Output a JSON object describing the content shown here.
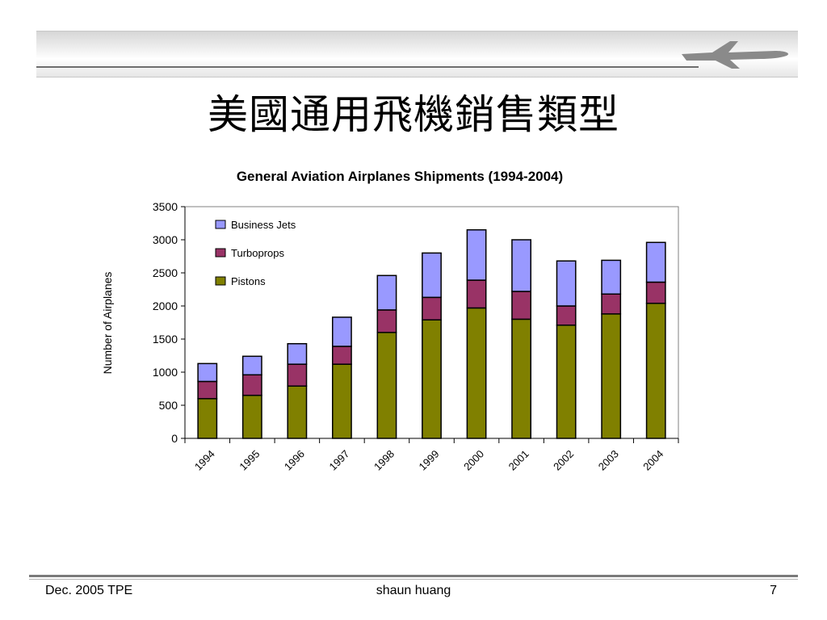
{
  "slide": {
    "title": "美國通用飛機銷售類型",
    "footer_left": "Dec. 2005 TPE",
    "footer_center": "shaun huang",
    "footer_right": "7"
  },
  "icons": {
    "header": "airplane-icon"
  },
  "chart_data": {
    "type": "bar",
    "stacked": true,
    "title": "General Aviation Airplanes Shipments (1994-2004)",
    "xlabel": "",
    "ylabel": "Number of Airplanes",
    "categories": [
      "1994",
      "1995",
      "1996",
      "1997",
      "1998",
      "1999",
      "2000",
      "2001",
      "2002",
      "2003",
      "2004"
    ],
    "series": [
      {
        "name": "Pistons",
        "color": "#808000",
        "values": [
          600,
          650,
          790,
          1120,
          1600,
          1790,
          1970,
          1800,
          1710,
          1880,
          2040
        ]
      },
      {
        "name": "Turboprops",
        "color": "#993366",
        "values": [
          260,
          310,
          330,
          270,
          340,
          340,
          420,
          420,
          290,
          300,
          320
        ]
      },
      {
        "name": "Business Jets",
        "color": "#9999ff",
        "values": [
          270,
          280,
          310,
          440,
          520,
          670,
          760,
          780,
          680,
          510,
          600
        ]
      }
    ],
    "ylim": [
      0,
      3500
    ],
    "yticks": [
      0,
      500,
      1000,
      1500,
      2000,
      2500,
      3000,
      3500
    ],
    "legend": "top-left inside plot",
    "grid": false
  }
}
